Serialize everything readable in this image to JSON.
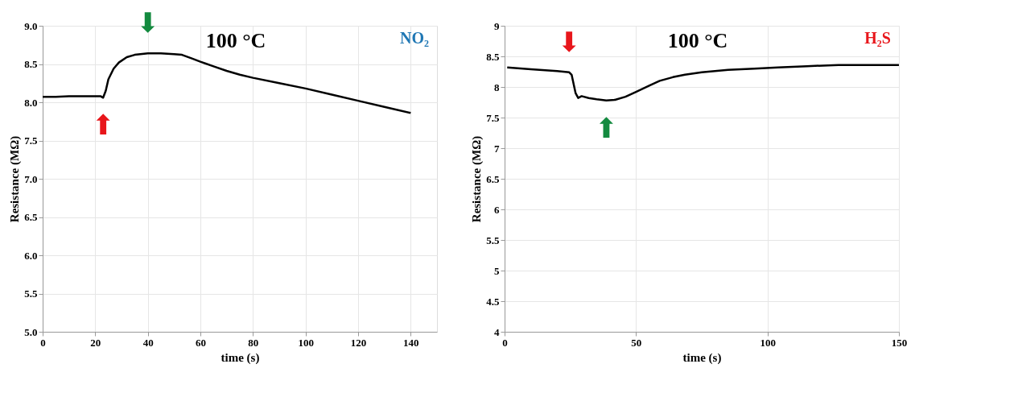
{
  "chart_data": [
    {
      "type": "line",
      "title": "100 °C",
      "xlabel": "time (s)",
      "ylabel": "Resistance (MΩ)",
      "xlim": [
        0,
        150
      ],
      "xticks": [
        0,
        20,
        40,
        60,
        80,
        100,
        120,
        140
      ],
      "ylim": [
        5,
        9
      ],
      "yticks": [
        {
          "value": 5,
          "label": "5.0"
        },
        5.5,
        {
          "value": 6,
          "label": "6.0"
        },
        6.5,
        {
          "value": 7,
          "label": "7.0"
        },
        7.5,
        {
          "value": 8,
          "label": "8.0"
        },
        8.5,
        {
          "value": 9,
          "label": "9.0"
        }
      ],
      "grid": true,
      "marker": "none",
      "line_style": "solid",
      "series": [
        {
          "color": "#000000",
          "x": [
            0,
            5,
            10,
            15,
            20,
            22,
            23,
            24,
            25,
            27,
            29,
            32,
            35,
            40,
            45,
            50,
            53,
            57,
            60,
            65,
            70,
            75,
            80,
            90,
            100,
            110,
            120,
            130,
            140
          ],
          "values": [
            8.07,
            8.07,
            8.08,
            8.08,
            8.08,
            8.08,
            8.06,
            8.15,
            8.3,
            8.44,
            8.52,
            8.59,
            8.62,
            8.64,
            8.64,
            8.63,
            8.62,
            8.57,
            8.53,
            8.47,
            8.41,
            8.36,
            8.32,
            8.25,
            8.18,
            8.1,
            8.02,
            7.94,
            7.86
          ]
        }
      ],
      "annotations": [
        "NO₂",
        {
          "text": "⬆",
          "x": 23,
          "y": 8.06
        },
        {
          "text": "⬇",
          "x": 40,
          "y": 8.64
        }
      ]
    },
    {
      "type": "line",
      "title": "100 °C",
      "xlabel": "time (s)",
      "ylabel": "Resistance (MΩ)",
      "xlim": [
        0,
        150
      ],
      "xticks": [
        0,
        50,
        100,
        150
      ],
      "ylim": [
        4,
        9
      ],
      "yticks": [
        4,
        4.5,
        5,
        5.5,
        6,
        6.5,
        7,
        7.5,
        8,
        8.5,
        9
      ],
      "grid": true,
      "marker": "none",
      "line_style": "solid",
      "series": [
        {
          "color": "#000000",
          "x": [
            1,
            10,
            20,
            24.6,
            25.5,
            27,
            28,
            29.3,
            32,
            35,
            38.7,
            42,
            46,
            50,
            55,
            59,
            64,
            68.6,
            75,
            85,
            95,
            104,
            115,
            127,
            140,
            150
          ],
          "values": [
            8.32,
            8.29,
            8.26,
            8.24,
            8.2,
            7.9,
            7.82,
            7.85,
            7.82,
            7.8,
            7.78,
            7.79,
            7.84,
            7.92,
            8.02,
            8.1,
            8.16,
            8.2,
            8.24,
            8.28,
            8.3,
            8.32,
            8.34,
            8.36,
            8.36,
            8.36
          ]
        }
      ],
      "annotations": [
        "H₂S",
        {
          "text": "⬇",
          "x": 24.6,
          "y": 8.24
        },
        {
          "text": "⬆",
          "x": 38.7,
          "y": 7.78
        }
      ]
    }
  ]
}
